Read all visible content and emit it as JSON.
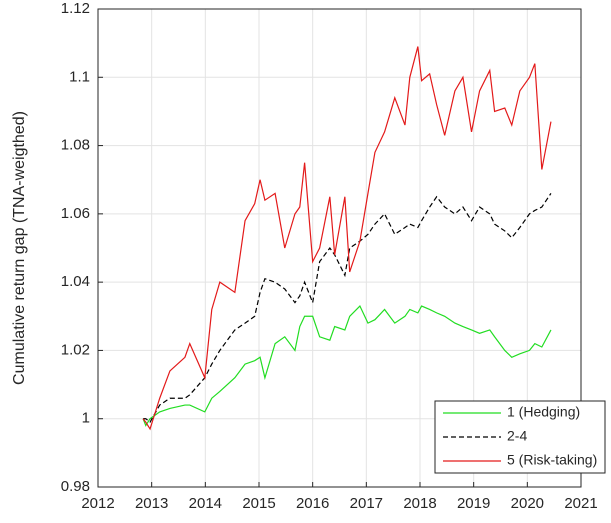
{
  "chart_data": {
    "type": "line",
    "y_label": "Cumulative return gap (TNA-weigthed)",
    "x": [
      2012.84,
      2012.89,
      2012.97,
      2013.15,
      2013.34,
      2013.62,
      2013.71,
      2013.99,
      2014.12,
      2014.27,
      2014.55,
      2014.74,
      2014.92,
      2015.02,
      2015.11,
      2015.3,
      2015.48,
      2015.67,
      2015.76,
      2015.85,
      2016.0,
      2016.13,
      2016.32,
      2016.41,
      2016.6,
      2016.69,
      2016.88,
      2017.03,
      2017.16,
      2017.34,
      2017.53,
      2017.72,
      2017.81,
      2017.96,
      2018.03,
      2018.18,
      2018.31,
      2018.46,
      2018.65,
      2018.8,
      2018.96,
      2019.11,
      2019.3,
      2019.39,
      2019.58,
      2019.71,
      2019.86,
      2020.04,
      2020.14,
      2020.27,
      2020.44
    ],
    "series": [
      {
        "name": "1 (Hedging)",
        "color": "#22dd22",
        "dashed": false,
        "values": [
          1.0,
          0.998,
          1.0,
          1.002,
          1.003,
          1.004,
          1.004,
          1.002,
          1.006,
          1.008,
          1.012,
          1.016,
          1.017,
          1.018,
          1.012,
          1.022,
          1.024,
          1.02,
          1.027,
          1.03,
          1.03,
          1.024,
          1.023,
          1.027,
          1.026,
          1.03,
          1.033,
          1.028,
          1.029,
          1.032,
          1.028,
          1.03,
          1.032,
          1.031,
          1.033,
          1.032,
          1.031,
          1.03,
          1.028,
          1.027,
          1.026,
          1.025,
          1.026,
          1.024,
          1.02,
          1.018,
          1.019,
          1.02,
          1.022,
          1.021,
          1.026
        ]
      },
      {
        "name": "2-4",
        "color": "#000000",
        "dashed": true,
        "values": [
          1.0,
          1.0,
          0.999,
          1.004,
          1.006,
          1.006,
          1.007,
          1.012,
          1.016,
          1.02,
          1.026,
          1.028,
          1.03,
          1.037,
          1.041,
          1.04,
          1.038,
          1.034,
          1.036,
          1.04,
          1.034,
          1.046,
          1.05,
          1.048,
          1.042,
          1.05,
          1.052,
          1.054,
          1.057,
          1.06,
          1.054,
          1.056,
          1.057,
          1.056,
          1.058,
          1.062,
          1.065,
          1.062,
          1.06,
          1.062,
          1.058,
          1.062,
          1.06,
          1.057,
          1.055,
          1.053,
          1.056,
          1.06,
          1.061,
          1.062,
          1.066
        ]
      },
      {
        "name": "5 (Risk-taking)",
        "color": "#e31a1a",
        "dashed": false,
        "values": [
          1.0,
          0.999,
          0.997,
          1.006,
          1.014,
          1.018,
          1.022,
          1.012,
          1.032,
          1.04,
          1.037,
          1.058,
          1.063,
          1.07,
          1.064,
          1.066,
          1.05,
          1.06,
          1.062,
          1.075,
          1.046,
          1.05,
          1.065,
          1.048,
          1.065,
          1.043,
          1.052,
          1.066,
          1.078,
          1.084,
          1.094,
          1.086,
          1.1,
          1.109,
          1.099,
          1.101,
          1.092,
          1.083,
          1.096,
          1.1,
          1.084,
          1.096,
          1.102,
          1.09,
          1.091,
          1.086,
          1.096,
          1.1,
          1.104,
          1.073,
          1.087
        ]
      }
    ],
    "xlim": [
      2012,
      2021
    ],
    "xticks": [
      2012,
      2013,
      2014,
      2015,
      2016,
      2017,
      2018,
      2019,
      2020,
      2021
    ],
    "ylim": [
      0.98,
      1.12
    ],
    "yticks": [
      0.98,
      1,
      1.02,
      1.04,
      1.06,
      1.08,
      1.1,
      1.12
    ],
    "grid": true,
    "legend_position": "lower right"
  }
}
